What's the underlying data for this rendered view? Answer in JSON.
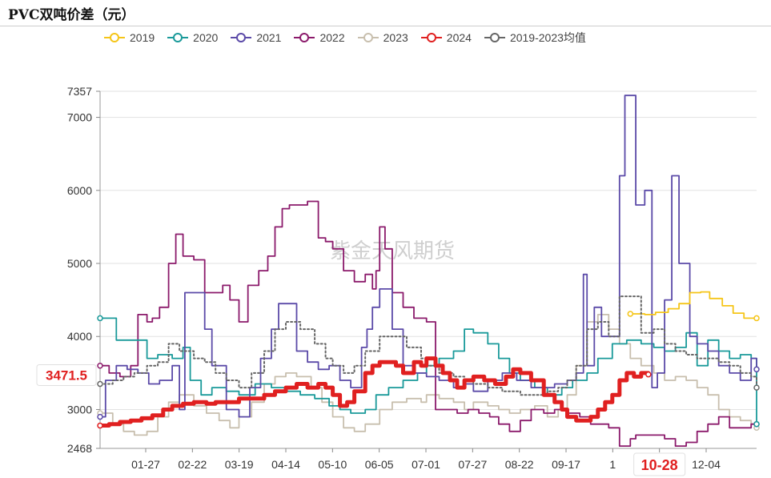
{
  "title": "PVC双吨价差（元）",
  "watermark": "紫金天风期货",
  "chart_data": {
    "type": "line",
    "title": "PVC双吨价差（元）",
    "ylim": [
      2468,
      7357
    ],
    "yticks": [
      2468,
      3000,
      4000,
      5000,
      6000,
      7000,
      7357
    ],
    "x_tick_labels": [
      "01-27",
      "02-22",
      "03-19",
      "04-14",
      "05-10",
      "06-05",
      "07-01",
      "07-27",
      "08-22",
      "09-17",
      "1",
      "10-28",
      "12-04"
    ],
    "legend_position": "top",
    "grid": "horizontal",
    "crosshair": {
      "x_label": "10-28",
      "y_label": "3471.5",
      "y_value": 3471.5
    },
    "x_domain": [
      "01-01",
      "12-31"
    ],
    "series": [
      {
        "name": "2019",
        "color": "#f5c518",
        "dashed": false,
        "x": [
          "10-22",
          "10-30",
          "11-05",
          "11-12",
          "11-18",
          "11-24",
          "11-30",
          "12-05",
          "12-12",
          "12-18",
          "12-24",
          "12-31"
        ],
        "values": [
          4310,
          4300,
          4330,
          4380,
          4450,
          4600,
          4610,
          4520,
          4420,
          4320,
          4250,
          4250
        ]
      },
      {
        "name": "2020",
        "color": "#1a9a9a",
        "dashed": false,
        "x": [
          "01-01",
          "01-06",
          "01-10",
          "01-20",
          "01-27",
          "02-02",
          "02-10",
          "02-16",
          "02-20",
          "02-26",
          "03-04",
          "03-12",
          "03-19",
          "03-28",
          "04-06",
          "04-14",
          "04-22",
          "04-30",
          "05-08",
          "05-14",
          "05-20",
          "05-28",
          "06-03",
          "06-10",
          "06-18",
          "06-26",
          "07-01",
          "07-08",
          "07-16",
          "07-22",
          "07-27",
          "08-04",
          "08-10",
          "08-16",
          "08-22",
          "08-30",
          "09-06",
          "09-14",
          "09-20",
          "09-28",
          "10-04",
          "10-12",
          "10-20",
          "10-28",
          "11-04",
          "11-10",
          "11-16",
          "11-22",
          "11-28",
          "12-04",
          "12-10",
          "12-16",
          "12-22",
          "12-28",
          "12-31"
        ],
        "values": [
          4250,
          4250,
          3950,
          3950,
          3700,
          3750,
          3700,
          3850,
          3400,
          3200,
          3300,
          3250,
          3200,
          3350,
          3300,
          3250,
          3200,
          3150,
          3050,
          3000,
          2950,
          3000,
          3200,
          3300,
          3400,
          3500,
          3600,
          3700,
          3800,
          4100,
          4050,
          3900,
          3700,
          3500,
          3400,
          3300,
          3200,
          3300,
          3400,
          3500,
          3700,
          3900,
          3950,
          3900,
          3850,
          3800,
          3850,
          4050,
          3600,
          3950,
          3800,
          3700,
          3750,
          3700,
          2800
        ]
      },
      {
        "name": "2021",
        "color": "#5b4aa8",
        "dashed": false,
        "x": [
          "01-01",
          "01-04",
          "01-10",
          "01-16",
          "01-22",
          "01-28",
          "02-03",
          "02-10",
          "02-14",
          "02-17",
          "02-20",
          "02-28",
          "03-04",
          "03-12",
          "03-19",
          "03-25",
          "03-31",
          "04-06",
          "04-10",
          "04-14",
          "04-20",
          "04-26",
          "05-02",
          "05-08",
          "05-14",
          "05-20",
          "05-26",
          "05-29",
          "06-01",
          "06-05",
          "06-08",
          "06-12",
          "06-18",
          "06-24",
          "07-01",
          "07-08",
          "07-16",
          "07-22",
          "07-27",
          "08-04",
          "08-12",
          "08-20",
          "08-28",
          "09-04",
          "09-10",
          "09-17",
          "09-22",
          "09-26",
          "09-28",
          "10-02",
          "10-06",
          "10-10",
          "10-14",
          "10-16",
          "10-19",
          "10-22",
          "10-25",
          "10-30",
          "11-03",
          "11-06",
          "11-10",
          "11-14",
          "11-18",
          "11-24",
          "11-28",
          "12-04",
          "12-10",
          "12-16",
          "12-22",
          "12-28",
          "12-31"
        ],
        "values": [
          2900,
          3400,
          3600,
          3550,
          3500,
          3350,
          3400,
          3600,
          3000,
          4600,
          4600,
          4100,
          3600,
          3000,
          2900,
          3300,
          3700,
          4100,
          4450,
          4450,
          3800,
          3650,
          3550,
          3600,
          3400,
          3300,
          3850,
          4100,
          4400,
          4650,
          4650,
          4100,
          3600,
          3500,
          3450,
          3400,
          3300,
          3350,
          3250,
          3400,
          3500,
          3400,
          3300,
          3300,
          3350,
          3400,
          3500,
          4850,
          3600,
          4400,
          4000,
          4000,
          4000,
          6200,
          7300,
          7300,
          5800,
          6000,
          3300,
          3500,
          4500,
          6200,
          5000,
          4000,
          3900,
          3800,
          3600,
          3500,
          3400,
          3700,
          3550
        ]
      },
      {
        "name": "2022",
        "color": "#8b1a6b",
        "dashed": false,
        "x": [
          "01-01",
          "01-06",
          "01-12",
          "01-18",
          "01-22",
          "01-27",
          "01-30",
          "02-03",
          "02-08",
          "02-12",
          "02-16",
          "02-22",
          "02-28",
          "03-04",
          "03-10",
          "03-14",
          "03-19",
          "03-24",
          "03-30",
          "04-04",
          "04-08",
          "04-12",
          "04-16",
          "04-20",
          "04-26",
          "05-02",
          "05-06",
          "05-10",
          "05-16",
          "05-22",
          "05-28",
          "06-01",
          "06-03",
          "06-05",
          "06-08",
          "06-12",
          "06-18",
          "06-24",
          "07-01",
          "07-06",
          "07-12",
          "07-18",
          "07-24",
          "07-30",
          "08-05",
          "08-10",
          "08-16",
          "08-22",
          "08-28",
          "09-04",
          "09-10",
          "09-17",
          "09-24",
          "09-30",
          "10-05",
          "10-10",
          "10-16",
          "10-22",
          "10-25",
          "10-28",
          "11-04",
          "11-10",
          "11-16",
          "11-22",
          "11-28",
          "12-04",
          "12-10",
          "12-16",
          "12-22",
          "12-28",
          "12-31"
        ],
        "values": [
          3600,
          3500,
          3450,
          3600,
          4300,
          4200,
          4250,
          4400,
          5000,
          5400,
          5100,
          5050,
          4600,
          4600,
          4700,
          4500,
          4200,
          4700,
          4900,
          5100,
          5500,
          5750,
          5800,
          5800,
          5850,
          5350,
          5300,
          5200,
          4900,
          4750,
          4850,
          4650,
          4900,
          5500,
          5200,
          4600,
          4400,
          4250,
          4200,
          3000,
          3000,
          2950,
          3000,
          2950,
          2900,
          2800,
          2700,
          2850,
          3000,
          2950,
          3000,
          2950,
          2900,
          2800,
          2800,
          2750,
          2500,
          2600,
          2650,
          2650,
          2650,
          2600,
          2500,
          2550,
          2700,
          2800,
          2900,
          2750,
          2750,
          2800,
          2800
        ]
      },
      {
        "name": "2023",
        "color": "#c8bfae",
        "dashed": false,
        "x": [
          "01-01",
          "01-08",
          "01-14",
          "01-20",
          "01-27",
          "02-02",
          "02-08",
          "02-14",
          "02-22",
          "03-01",
          "03-08",
          "03-14",
          "03-19",
          "03-26",
          "04-02",
          "04-08",
          "04-14",
          "04-20",
          "04-28",
          "05-04",
          "05-10",
          "05-16",
          "05-22",
          "05-28",
          "06-05",
          "06-12",
          "06-20",
          "06-28",
          "07-01",
          "07-08",
          "07-16",
          "07-22",
          "07-27",
          "08-04",
          "08-10",
          "08-16",
          "08-22",
          "08-30",
          "09-06",
          "09-12",
          "09-17",
          "09-22",
          "09-28",
          "10-04",
          "10-10",
          "10-16",
          "10-22",
          "10-28",
          "11-04",
          "11-10",
          "11-16",
          "11-22",
          "11-28",
          "12-04",
          "12-10",
          "12-16",
          "12-22",
          "12-28",
          "12-31"
        ],
        "values": [
          2950,
          2800,
          2700,
          2650,
          2700,
          2900,
          3100,
          3200,
          3050,
          2950,
          2850,
          2750,
          2900,
          3100,
          3350,
          3450,
          3500,
          3450,
          3300,
          3100,
          2900,
          2750,
          2700,
          2800,
          3000,
          3100,
          3150,
          3100,
          3200,
          3150,
          3100,
          3000,
          3100,
          3050,
          3000,
          2950,
          3000,
          3050,
          2900,
          3000,
          3200,
          3600,
          4200,
          4300,
          4100,
          3900,
          3700,
          3600,
          3500,
          3400,
          3450,
          3400,
          3300,
          3200,
          3000,
          2900,
          2850,
          2800,
          2750
        ]
      },
      {
        "name": "2024",
        "color": "#e02020",
        "dashed": false,
        "x": [
          "01-01",
          "01-06",
          "01-12",
          "01-18",
          "01-24",
          "01-30",
          "02-05",
          "02-10",
          "02-16",
          "02-22",
          "03-01",
          "03-06",
          "03-12",
          "03-19",
          "03-26",
          "04-02",
          "04-08",
          "04-14",
          "04-20",
          "04-26",
          "05-02",
          "05-06",
          "05-10",
          "05-14",
          "05-18",
          "05-22",
          "05-28",
          "06-01",
          "06-05",
          "06-10",
          "06-14",
          "06-18",
          "06-24",
          "06-28",
          "07-01",
          "07-06",
          "07-10",
          "07-14",
          "07-18",
          "07-22",
          "07-27",
          "08-02",
          "08-08",
          "08-14",
          "08-18",
          "08-22",
          "08-28",
          "09-04",
          "09-10",
          "09-14",
          "09-17",
          "09-22",
          "09-26",
          "09-30",
          "10-04",
          "10-08",
          "10-12",
          "10-16",
          "10-20",
          "10-24",
          "10-28",
          "11-01"
        ],
        "values": [
          2780,
          2800,
          2830,
          2850,
          2880,
          2920,
          3000,
          3050,
          3080,
          3100,
          3080,
          3100,
          3100,
          3150,
          3150,
          3200,
          3250,
          3300,
          3350,
          3300,
          3350,
          3300,
          3200,
          3050,
          3100,
          3250,
          3500,
          3600,
          3650,
          3650,
          3600,
          3500,
          3650,
          3600,
          3700,
          3600,
          3500,
          3400,
          3300,
          3400,
          3450,
          3400,
          3350,
          3450,
          3550,
          3500,
          3400,
          3200,
          3100,
          3000,
          2900,
          2850,
          2850,
          2900,
          3000,
          3100,
          3200,
          3400,
          3500,
          3450,
          3500,
          3480
        ]
      },
      {
        "name": "2019-2023均值",
        "color": "#666666",
        "dashed": true,
        "x": [
          "01-01",
          "01-08",
          "01-14",
          "01-20",
          "01-27",
          "02-02",
          "02-08",
          "02-14",
          "02-22",
          "02-28",
          "03-06",
          "03-12",
          "03-19",
          "03-26",
          "04-02",
          "04-08",
          "04-14",
          "04-22",
          "04-30",
          "05-06",
          "05-10",
          "05-16",
          "05-22",
          "05-28",
          "06-05",
          "06-12",
          "06-20",
          "06-28",
          "07-01",
          "07-08",
          "07-16",
          "07-22",
          "07-27",
          "08-04",
          "08-12",
          "08-22",
          "08-30",
          "09-06",
          "09-12",
          "09-17",
          "09-22",
          "09-28",
          "10-04",
          "10-10",
          "10-16",
          "10-22",
          "10-28",
          "11-04",
          "11-10",
          "11-16",
          "11-22",
          "11-28",
          "12-04",
          "12-10",
          "12-16",
          "12-22",
          "12-28",
          "12-31"
        ],
        "values": [
          3350,
          3400,
          3450,
          3500,
          3600,
          3650,
          3900,
          3800,
          3700,
          3650,
          3500,
          3400,
          3300,
          3500,
          3800,
          4100,
          4200,
          4100,
          3900,
          3700,
          3600,
          3500,
          3600,
          3800,
          4000,
          4000,
          3850,
          3700,
          3600,
          3500,
          3450,
          3400,
          3350,
          3300,
          3250,
          3200,
          3200,
          3250,
          3300,
          3400,
          3600,
          4100,
          4200,
          4000,
          4550,
          4550,
          4050,
          4100,
          3900,
          3800,
          3750,
          3700,
          3700,
          3650,
          3600,
          3500,
          3450,
          3300
        ]
      }
    ]
  }
}
